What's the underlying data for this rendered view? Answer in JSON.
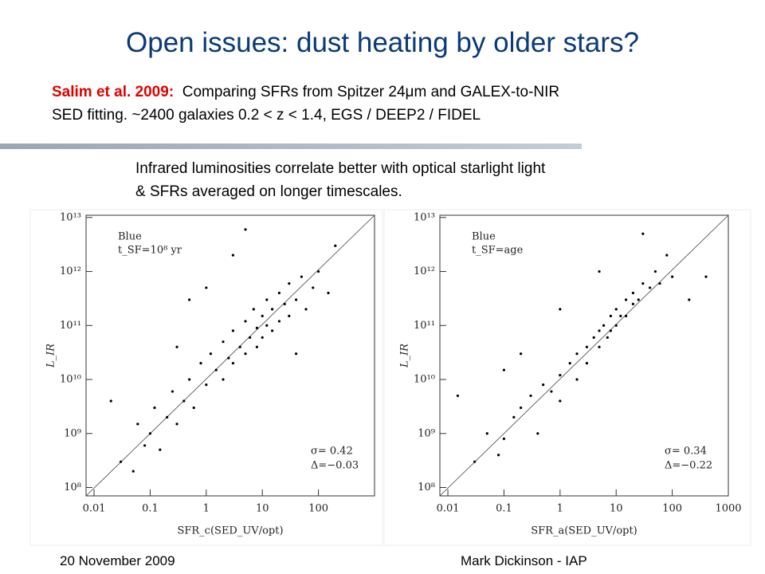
{
  "header": {
    "title": "Open issues: dust heating by older stars?"
  },
  "intro": {
    "citation": "Salim et al. 2009:",
    "lines": [
      "Comparing SFRs from Spitzer 24μm and GALEX-to-NIR",
      "SED fitting. ~2400 galaxies 0.2 < z < 1.4, EGS / DEEP2 / FIDEL"
    ]
  },
  "subtitle": {
    "lines": [
      "Infrared luminosities correlate better with optical starlight light",
      "& SFRs averaged on longer timescales."
    ]
  },
  "footer": {
    "date": "20 November 2009",
    "author": "Mark Dickinson - IAP"
  },
  "chart_data": [
    {
      "type": "scatter",
      "xlabel": "SFR_c(SED_UV/opt)",
      "ylabel": "L_IR",
      "color": "#000000",
      "log_x": true,
      "log_y": true,
      "annotations": [
        "Blue",
        "t_SF=10⁸ yr",
        "σ=  0.42",
        "Δ=−0.03"
      ],
      "xlim": [
        0.0072,
        1000
      ],
      "ylim": [
        70000000.0,
        11000000000000.0
      ],
      "xticks": [
        0.01,
        0.1,
        1,
        10,
        100
      ],
      "yticks": [
        {
          "value": 100000000.0,
          "label": "10⁸"
        },
        {
          "value": 1000000000.0,
          "label": "10⁹"
        },
        {
          "value": 10000000000.0,
          "label": "10¹⁰"
        },
        {
          "value": 100000000000.0,
          "label": "10¹¹"
        },
        {
          "value": 1000000000000.0,
          "label": "10¹²"
        },
        {
          "value": 10000000000000.0,
          "label": "10¹³"
        }
      ],
      "x": [
        0.03,
        0.05,
        0.06,
        0.08,
        0.1,
        0.12,
        0.15,
        0.2,
        0.25,
        0.3,
        0.4,
        0.5,
        0.6,
        0.8,
        1,
        1.2,
        1.5,
        2,
        2,
        2.5,
        3,
        3,
        4,
        5,
        5,
        6,
        7,
        8,
        8,
        10,
        10,
        12,
        12,
        15,
        15,
        20,
        20,
        25,
        30,
        30,
        40,
        50,
        60,
        80,
        100,
        150,
        0.5,
        3,
        1,
        40,
        0.02,
        0.3,
        200,
        5
      ],
      "values": [
        300000000.0,
        200000000.0,
        1500000000.0,
        600000000.0,
        1000000000.0,
        3000000000.0,
        500000000.0,
        2000000000.0,
        6000000000.0,
        1500000000.0,
        4000000000.0,
        10000000000.0,
        3000000000.0,
        20000000000.0,
        8000000000.0,
        30000000000.0,
        15000000000.0,
        50000000000.0,
        10000000000.0,
        25000000000.0,
        80000000000.0,
        20000000000.0,
        40000000000.0,
        120000000000.0,
        30000000000.0,
        60000000000.0,
        200000000000.0,
        90000000000.0,
        40000000000.0,
        150000000000.0,
        60000000000.0,
        300000000000.0,
        100000000000.0,
        200000000000.0,
        80000000000.0,
        400000000000.0,
        120000000000.0,
        250000000000.0,
        600000000000.0,
        150000000000.0,
        300000000000.0,
        800000000000.0,
        200000000000.0,
        500000000000.0,
        1000000000000.0,
        400000000000.0,
        300000000000.0,
        2000000000000.0,
        500000000000.0,
        30000000000.0,
        4000000000.0,
        40000000000.0,
        3000000000000.0,
        6000000000000.0
      ]
    },
    {
      "type": "scatter",
      "xlabel": "SFR_a(SED_UV/opt)",
      "ylabel": "L_IR",
      "color": "#000000",
      "log_x": true,
      "log_y": true,
      "annotations": [
        "Blue",
        "t_SF=age",
        "σ=  0.34",
        "Δ=−0.22"
      ],
      "xlim": [
        0.0072,
        1000
      ],
      "ylim": [
        70000000.0,
        11000000000000.0
      ],
      "xticks": [
        0.01,
        0.1,
        1,
        10,
        100,
        1000
      ],
      "yticks": [
        {
          "value": 100000000.0,
          "label": "10⁸"
        },
        {
          "value": 1000000000.0,
          "label": "10⁹"
        },
        {
          "value": 10000000000.0,
          "label": "10¹⁰"
        },
        {
          "value": 100000000000.0,
          "label": "10¹¹"
        },
        {
          "value": 1000000000000.0,
          "label": "10¹²"
        },
        {
          "value": 10000000000000.0,
          "label": "10¹³"
        }
      ],
      "x": [
        0.015,
        0.03,
        0.05,
        0.08,
        0.1,
        0.15,
        0.2,
        0.3,
        0.4,
        0.5,
        0.7,
        1,
        1,
        1.5,
        2,
        2,
        3,
        3,
        4,
        5,
        5,
        6,
        7,
        8,
        8,
        10,
        10,
        12,
        15,
        15,
        20,
        20,
        25,
        30,
        40,
        50,
        60,
        80,
        100,
        200,
        400,
        0.2,
        1,
        5,
        30,
        0.1
      ],
      "values": [
        5000000000.0,
        300000000.0,
        1000000000.0,
        400000000.0,
        800000000.0,
        2000000000.0,
        3000000000.0,
        5000000000.0,
        1000000000.0,
        8000000000.0,
        6000000000.0,
        12000000000.0,
        4000000000.0,
        20000000000.0,
        30000000000.0,
        10000000000.0,
        40000000000.0,
        20000000000.0,
        60000000000.0,
        80000000000.0,
        40000000000.0,
        100000000000.0,
        60000000000.0,
        150000000000.0,
        80000000000.0,
        200000000000.0,
        100000000000.0,
        150000000000.0,
        300000000000.0,
        150000000000.0,
        250000000000.0,
        400000000000.0,
        300000000000.0,
        600000000000.0,
        500000000000.0,
        1000000000000.0,
        600000000000.0,
        2000000000000.0,
        800000000000.0,
        300000000000.0,
        800000000000.0,
        30000000000.0,
        200000000000.0,
        1000000000000.0,
        5000000000000.0,
        15000000000.0
      ]
    }
  ]
}
